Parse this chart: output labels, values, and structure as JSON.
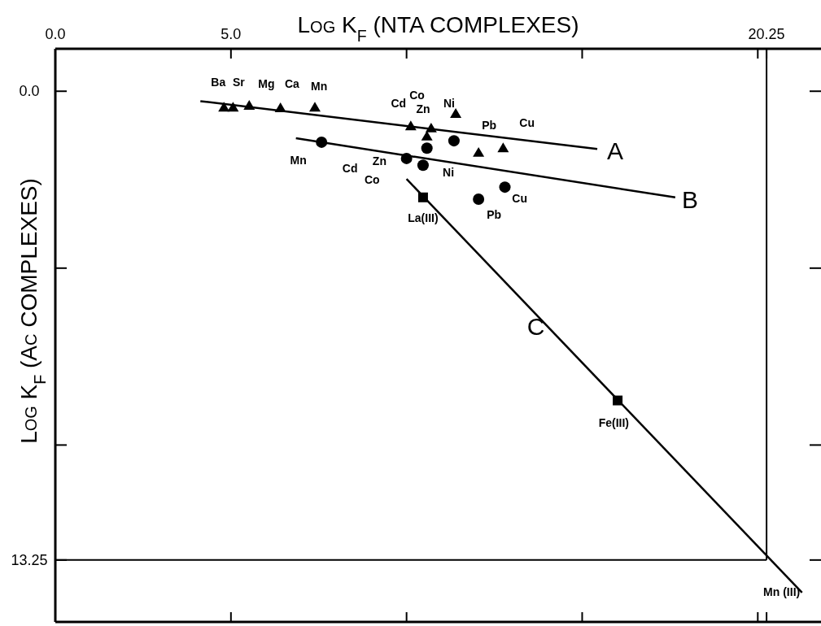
{
  "chart_data": {
    "type": "scatter",
    "xlabel": "Log K$_{F}$ (NTA COMPLEXES)",
    "ylabel": "Log K$_{F}$ (Ac COMPLEXES)",
    "xlim": [
      0,
      21.8
    ],
    "ylim": [
      15,
      -1.2
    ],
    "xticks": [
      {
        "value": 0,
        "label": "0.0"
      },
      {
        "value": 5,
        "label": "5.0"
      },
      {
        "value": 10,
        "label": null
      },
      {
        "value": 15,
        "label": null
      },
      {
        "value": 20,
        "label": null
      },
      {
        "value": 20.25,
        "label": "20.25"
      }
    ],
    "yticks": [
      {
        "value": 0,
        "label": "0.0"
      },
      {
        "value": 5,
        "label": null
      },
      {
        "value": 10,
        "label": null
      },
      {
        "value": 13.25,
        "label": "13.25"
      }
    ],
    "grid": false,
    "ref_lines": [
      {
        "axis": "x",
        "value": 20.25,
        "color": "#000000"
      },
      {
        "axis": "y",
        "value": 13.25,
        "color": "#000000"
      }
    ],
    "series": [
      {
        "marker": "triangle",
        "color": "#000000",
        "x": [
          4.8,
          5.06,
          5.52,
          6.41,
          7.39,
          10.12,
          10.7,
          10.58,
          11.4,
          12.05,
          12.75
        ],
        "values": [
          0.46,
          0.46,
          0.41,
          0.48,
          0.46,
          0.99,
          1.05,
          1.28,
          0.64,
          1.74,
          1.61
        ]
      },
      {
        "marker": "circle",
        "color": "#000000",
        "x": [
          7.58,
          10.0,
          10.58,
          10.47,
          11.35,
          12.05,
          12.8
        ],
        "values": [
          1.44,
          1.9,
          1.61,
          2.09,
          1.4,
          3.05,
          2.71
        ]
      },
      {
        "marker": "square",
        "color": "#000000",
        "x": [
          10.47,
          16.01
        ],
        "values": [
          3.0,
          8.74
        ]
      },
      {
        "type": "line",
        "marker": "none",
        "line_style": "solid",
        "color": "#000000",
        "x": [
          4.13,
          15.43
        ],
        "values": [
          0.28,
          1.63
        ]
      },
      {
        "type": "line",
        "marker": "none",
        "line_style": "solid",
        "color": "#000000",
        "x": [
          6.85,
          17.65
        ],
        "values": [
          1.33,
          3.0
        ]
      },
      {
        "type": "line",
        "marker": "none",
        "line_style": "solid",
        "color": "#000000",
        "x": [
          10.0,
          21.26
        ],
        "values": [
          2.48,
          14.17
        ]
      }
    ],
    "annotations": [
      "Ba",
      "Sr",
      "Mg",
      "Ca",
      "Mn",
      "Cd",
      "Co",
      "Zn",
      "Ni",
      "Pb",
      "Cu",
      "Mn",
      "Cd",
      "Co",
      "Zn",
      "Ni",
      "Pb",
      "Cu",
      "La(III)",
      "Fe(III)",
      "Mn (III)",
      "A",
      "B",
      "C"
    ]
  }
}
